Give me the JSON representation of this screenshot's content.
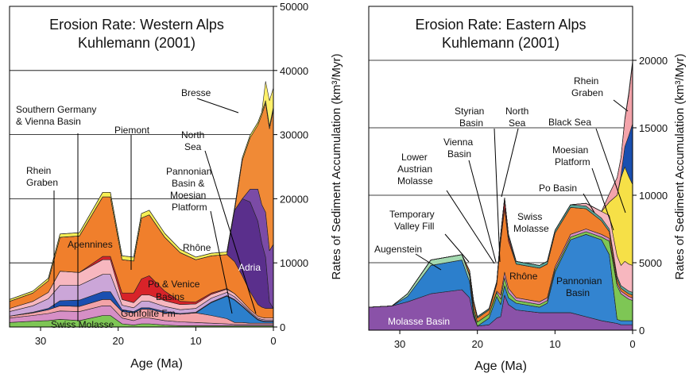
{
  "chart_data": [
    {
      "type": "area",
      "stacked": true,
      "title": "Erosion Rate: Western Alps",
      "subtitle": "Kuhlemann (2001)",
      "xlabel": "Age (Ma)",
      "ylabel": "Rates of Sediment Accumulation (km³/Myr)",
      "xlim": [
        34,
        0
      ],
      "ylim": [
        0,
        50000
      ],
      "xticks": [
        "30",
        "20",
        "10",
        "0"
      ],
      "yticks": [
        "0",
        "10000",
        "20000",
        "30000",
        "40000",
        "50000"
      ],
      "y_axis_side": "right",
      "grid": "horizontal",
      "x": [
        34,
        31,
        29,
        27.5,
        25,
        22,
        21,
        19.5,
        18,
        17,
        16,
        14,
        12,
        10,
        8,
        6,
        5,
        4,
        3,
        2,
        1.5,
        1,
        0.5,
        0
      ],
      "series": [
        {
          "name": "Swiss Molasse",
          "color": "#7ec655",
          "values": [
            700,
            900,
            1000,
            1200,
            1000,
            1800,
            1800,
            500,
            300,
            500,
            500,
            300,
            200,
            200,
            200,
            200,
            200,
            200,
            200,
            200,
            200,
            200,
            200,
            200
          ]
        },
        {
          "name": "Gonfolite Fm",
          "color": "#d68fc6",
          "values": [
            700,
            900,
            1100,
            1300,
            1400,
            1500,
            1500,
            900,
            700,
            900,
            900,
            700,
            600,
            500,
            400,
            300,
            200,
            200,
            200,
            200,
            200,
            200,
            200,
            200
          ]
        },
        {
          "name": "Po & Venice Basins",
          "color": "#f3a3a8",
          "values": [
            300,
            400,
            600,
            800,
            800,
            1000,
            1000,
            1000,
            1200,
            1400,
            1400,
            1200,
            1200,
            1500,
            1200,
            800,
            300,
            300,
            200,
            200,
            200,
            200,
            200,
            200
          ]
        },
        {
          "name": "Adria",
          "color": "#2c7fcc",
          "values": [
            0,
            0,
            0,
            0,
            0,
            0,
            0,
            0,
            0,
            0,
            0,
            0,
            0,
            0,
            2000,
            3500,
            3500,
            2500,
            1500,
            500,
            300,
            200,
            200,
            200
          ]
        },
        {
          "name": "Rhein Graben",
          "color": "#1a4fb0",
          "values": [
            0,
            100,
            200,
            800,
            1000,
            1200,
            1200,
            300,
            200,
            200,
            200,
            200,
            100,
            100,
            100,
            100,
            100,
            100,
            100,
            100,
            100,
            100,
            100,
            100
          ]
        },
        {
          "name": "Apennines",
          "color": "#cba6d8",
          "values": [
            700,
            1000,
            1500,
            2400,
            2300,
            2700,
            2700,
            700,
            600,
            1000,
            1000,
            800,
            600,
            600,
            600,
            500,
            400,
            300,
            200,
            200,
            200,
            200,
            200,
            200
          ]
        },
        {
          "name": "Rhône",
          "color": "#f7b7bf",
          "values": [
            500,
            700,
            1000,
            2200,
            2000,
            2300,
            2300,
            900,
            800,
            1000,
            1000,
            900,
            800,
            700,
            600,
            500,
            500,
            400,
            300,
            300,
            300,
            300,
            300,
            300
          ]
        },
        {
          "name": "Piemont",
          "color": "#d82329",
          "values": [
            0,
            0,
            0,
            0,
            0,
            500,
            500,
            1000,
            1500,
            2500,
            3000,
            1500,
            500,
            300,
            200,
            100,
            0,
            0,
            0,
            0,
            0,
            0,
            0,
            0
          ]
        },
        {
          "name": "Southern Germany & Vienna Basin",
          "color": "#f07f2c",
          "values": [
            1100,
            1300,
            1800,
            5300,
            5700,
            9300,
            9300,
            5200,
            5000,
            9500,
            9500,
            8400,
            7600,
            6600,
            5800,
            5300,
            5000,
            4000,
            2800,
            1800,
            1600,
            1500,
            1500,
            1500
          ]
        },
        {
          "name": "Pannonian Basin & Moesian Platform",
          "color": "#5a2f8c",
          "values": [
            0,
            0,
            0,
            0,
            0,
            0,
            0,
            0,
            0,
            0,
            0,
            0,
            0,
            0,
            0,
            0,
            8000,
            12000,
            14000,
            13000,
            10000,
            8000,
            1000,
            0
          ]
        },
        {
          "name": "North Sea",
          "color": "#7b4ba6",
          "values": [
            0,
            0,
            0,
            0,
            0,
            0,
            0,
            0,
            0,
            0,
            0,
            0,
            0,
            0,
            0,
            0,
            0,
            0,
            2000,
            5000,
            6000,
            7000,
            8000,
            10000
          ]
        },
        {
          "name": "Bresse",
          "color": "#f08a36",
          "values": [
            0,
            0,
            0,
            0,
            0,
            0,
            0,
            0,
            0,
            0,
            0,
            0,
            0,
            0,
            0,
            0,
            0,
            6000,
            8000,
            10000,
            14000,
            17000,
            19000,
            21000
          ]
        },
        {
          "name": "",
          "color": "#f6ef55",
          "values": [
            300,
            300,
            400,
            500,
            500,
            700,
            700,
            600,
            600,
            700,
            700,
            600,
            500,
            400,
            400,
            400,
            400,
            400,
            400,
            400,
            400,
            400,
            400,
            400
          ]
        },
        {
          "name": "",
          "color": "#fff06a",
          "values": [
            0,
            0,
            0,
            0,
            0,
            0,
            0,
            0,
            0,
            0,
            0,
            0,
            0,
            0,
            0,
            0,
            0,
            0,
            0,
            0,
            0,
            3000,
            4000,
            3000
          ]
        }
      ]
    },
    {
      "type": "area",
      "stacked": true,
      "title": "Erosion Rate: Eastern Alps",
      "subtitle": "Kuhlemann (2001)",
      "xlabel": "Age (Ma)",
      "ylabel": "Rates of Sediment Accumulation (km³/Myr)",
      "xlim": [
        34,
        0
      ],
      "ylim": [
        0,
        24000
      ],
      "xticks": [
        "30",
        "20",
        "10",
        "0"
      ],
      "yticks": [
        "0",
        "5000",
        "10000",
        "15000",
        "20000"
      ],
      "y_axis_side": "right",
      "grid": "horizontal",
      "x": [
        34,
        31,
        29,
        26,
        22,
        21,
        20.5,
        20,
        18.5,
        17.5,
        17,
        16.5,
        16,
        15,
        12,
        11,
        10,
        8,
        6,
        4,
        3,
        2,
        1.5,
        1,
        0.5,
        0
      ],
      "series": [
        {
          "name": "Molasse Basin",
          "color": "#8a52a8",
          "values": [
            1700,
            1800,
            2100,
            2700,
            3000,
            2400,
            1000,
            300,
            400,
            900,
            1000,
            2600,
            1900,
            1500,
            1300,
            1300,
            1300,
            1300,
            1000,
            700,
            600,
            500,
            400,
            400,
            400,
            400
          ]
        },
        {
          "name": "Augenstein",
          "color": "#2c7fcc",
          "values": [
            0,
            0,
            400,
            2100,
            2200,
            1200,
            200,
            0,
            0,
            0,
            0,
            0,
            0,
            0,
            0,
            0,
            0,
            0,
            0,
            0,
            0,
            0,
            0,
            0,
            0,
            0
          ]
        },
        {
          "name": "Pannonian Basin",
          "color": "#3384d0",
          "values": [
            0,
            0,
            0,
            0,
            0,
            0,
            0,
            0,
            500,
            1600,
            900,
            700,
            500,
            500,
            400,
            700,
            3000,
            5400,
            6100,
            6000,
            5000,
            300,
            300,
            300,
            300,
            300
          ]
        },
        {
          "name": "Temporary Valley Fill",
          "color": "#a3d9b0",
          "values": [
            0,
            0,
            200,
            400,
            400,
            400,
            200,
            0,
            0,
            0,
            0,
            0,
            0,
            0,
            0,
            0,
            0,
            0,
            0,
            0,
            0,
            0,
            0,
            0,
            0,
            0
          ]
        },
        {
          "name": "Lower Austrian Molasse",
          "color": "#7ec655",
          "values": [
            0,
            0,
            0,
            0,
            0,
            100,
            300,
            300,
            300,
            300,
            400,
            600,
            400,
            200,
            200,
            200,
            200,
            200,
            200,
            200,
            1000,
            2500,
            2000,
            1800,
            1600,
            1500
          ]
        },
        {
          "name": "Vienna Basin",
          "color": "#d68fc6",
          "values": [
            0,
            0,
            0,
            0,
            0,
            0,
            0,
            0,
            0,
            100,
            300,
            400,
            300,
            200,
            200,
            200,
            200,
            200,
            200,
            200,
            200,
            200,
            200,
            200,
            200,
            200
          ]
        },
        {
          "name": "Rhône",
          "color": "#f07f2c",
          "values": [
            0,
            0,
            0,
            0,
            0,
            300,
            400,
            300,
            300,
            500,
            4000,
            4700,
            3500,
            2500,
            2500,
            2500,
            2500,
            2000,
            1500,
            1000,
            500,
            300,
            200,
            200,
            200,
            200
          ]
        },
        {
          "name": "Styrian Basin",
          "color": "#d82329",
          "values": [
            0,
            0,
            0,
            0,
            0,
            0,
            0,
            0,
            0,
            100,
            300,
            600,
            300,
            0,
            0,
            0,
            0,
            0,
            0,
            0,
            0,
            0,
            0,
            0,
            0,
            0
          ]
        },
        {
          "name": "Swiss Molasse",
          "color": "#5aa89a",
          "values": [
            0,
            0,
            0,
            0,
            0,
            0,
            100,
            100,
            100,
            100,
            200,
            200,
            200,
            200,
            200,
            200,
            200,
            200,
            200,
            200,
            200,
            200,
            200,
            200,
            200,
            200
          ]
        },
        {
          "name": "Po Basin",
          "color": "#f7b7bf",
          "values": [
            0,
            0,
            0,
            0,
            0,
            0,
            0,
            0,
            0,
            0,
            0,
            0,
            0,
            0,
            0,
            0,
            0,
            0,
            200,
            500,
            1000,
            1500,
            1500,
            2000,
            2000,
            2000
          ]
        },
        {
          "name": "Moesian Platform",
          "color": "#f6e047",
          "values": [
            0,
            0,
            0,
            0,
            0,
            0,
            0,
            0,
            0,
            0,
            0,
            0,
            0,
            0,
            0,
            0,
            0,
            0,
            0,
            0,
            1000,
            4500,
            6500,
            7000,
            6500,
            6000
          ]
        },
        {
          "name": "Black Sea",
          "color": "#1a4fb0",
          "values": [
            0,
            0,
            0,
            0,
            0,
            0,
            0,
            0,
            0,
            0,
            0,
            0,
            0,
            0,
            0,
            0,
            0,
            0,
            0,
            0,
            0,
            0,
            200,
            1500,
            3000,
            4500
          ]
        },
        {
          "name": "Rhein Graben",
          "color": "#f4a4ab",
          "values": [
            0,
            0,
            0,
            0,
            0,
            0,
            0,
            0,
            0,
            0,
            0,
            0,
            0,
            0,
            0,
            0,
            0,
            0,
            0,
            0,
            600,
            1300,
            1300,
            2000,
            3000,
            4500
          ]
        },
        {
          "name": "North Sea",
          "color": "#cba6d8",
          "values": [
            0,
            0,
            0,
            0,
            0,
            0,
            0,
            0,
            0,
            0,
            0,
            0,
            0,
            0,
            0,
            0,
            0,
            0,
            0,
            0,
            0,
            0,
            0,
            100,
            200,
            200
          ]
        }
      ]
    }
  ],
  "annotations": {
    "western": [
      "Bresse",
      "Southern Germany",
      "& Vienna Basin",
      "Piemont",
      "North",
      "Sea",
      "Rhein",
      "Graben",
      "Pannonian",
      "Basin &",
      "Moesian",
      "Platform",
      "Apennines",
      "Rhône",
      "Adria",
      "Po & Venice",
      "Basins",
      "Gonfolite Fm",
      "Swiss Molasse"
    ],
    "eastern": [
      "Rhein",
      "Graben",
      "Styrian",
      "Basin",
      "North",
      "Sea",
      "Black Sea",
      "Vienna",
      "Basin",
      "Lower",
      "Austrian",
      "Molasse",
      "Moesian",
      "Platform",
      "Po Basin",
      "Swiss",
      "Molasse",
      "Temporary",
      "Valley Fill",
      "Augenstein",
      "Rhône",
      "Pannonian",
      "Basin",
      "Molasse Basin"
    ]
  }
}
